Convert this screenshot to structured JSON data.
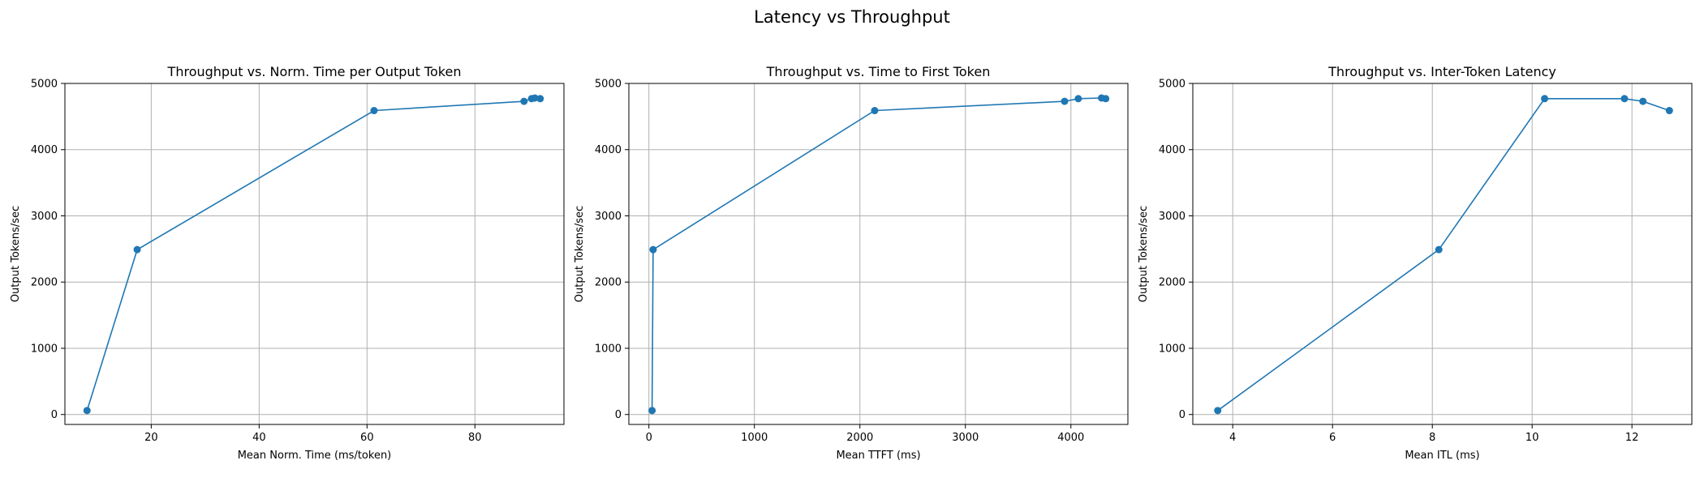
{
  "figure": {
    "title": "Latency vs Throughput"
  },
  "style": {
    "line_color": "#1f77b4",
    "grid_color": "#b0b0b0"
  },
  "chart_data": [
    {
      "type": "line",
      "title": "Throughput vs. Norm. Time per Output Token",
      "xlabel": "Mean Norm. Time (ms/token)",
      "ylabel": "Output Tokens/sec",
      "xlim": [
        4.0,
        96.5
      ],
      "ylim": [
        -150,
        5000
      ],
      "xticks": [
        20,
        40,
        60,
        80
      ],
      "yticks": [
        0,
        1000,
        2000,
        3000,
        4000,
        5000
      ],
      "grid": true,
      "series": [
        {
          "marker": "circle",
          "x": [
            8.1,
            17.4,
            61.3,
            89.1,
            90.5,
            91.1,
            92.1
          ],
          "y": [
            60,
            2490,
            4590,
            4730,
            4770,
            4780,
            4770
          ]
        }
      ]
    },
    {
      "type": "line",
      "title": "Throughput vs. Time to First Token",
      "xlabel": "Mean TTFT (ms)",
      "ylabel": "Output Tokens/sec",
      "xlim": [
        -190,
        4540
      ],
      "ylim": [
        -150,
        5000
      ],
      "xticks": [
        0,
        1000,
        2000,
        3000,
        4000
      ],
      "yticks": [
        0,
        1000,
        2000,
        3000,
        4000,
        5000
      ],
      "grid": true,
      "series": [
        {
          "marker": "circle",
          "x": [
            30,
            40,
            2140,
            3940,
            4070,
            4290,
            4330
          ],
          "y": [
            60,
            2490,
            4590,
            4730,
            4770,
            4780,
            4770
          ]
        }
      ]
    },
    {
      "type": "line",
      "title": "Throughput vs. Inter-Token Latency",
      "xlabel": "Mean ITL (ms)",
      "ylabel": "Output Tokens/sec",
      "xlim": [
        3.2,
        13.2
      ],
      "ylim": [
        -150,
        5000
      ],
      "xticks": [
        4,
        6,
        8,
        10,
        12
      ],
      "yticks": [
        0,
        1000,
        2000,
        3000,
        4000,
        5000
      ],
      "grid": true,
      "series": [
        {
          "marker": "circle",
          "x": [
            3.7,
            8.13,
            10.25,
            11.85,
            12.22,
            12.75
          ],
          "y": [
            60,
            2490,
            4770,
            4770,
            4730,
            4590
          ]
        }
      ]
    }
  ]
}
